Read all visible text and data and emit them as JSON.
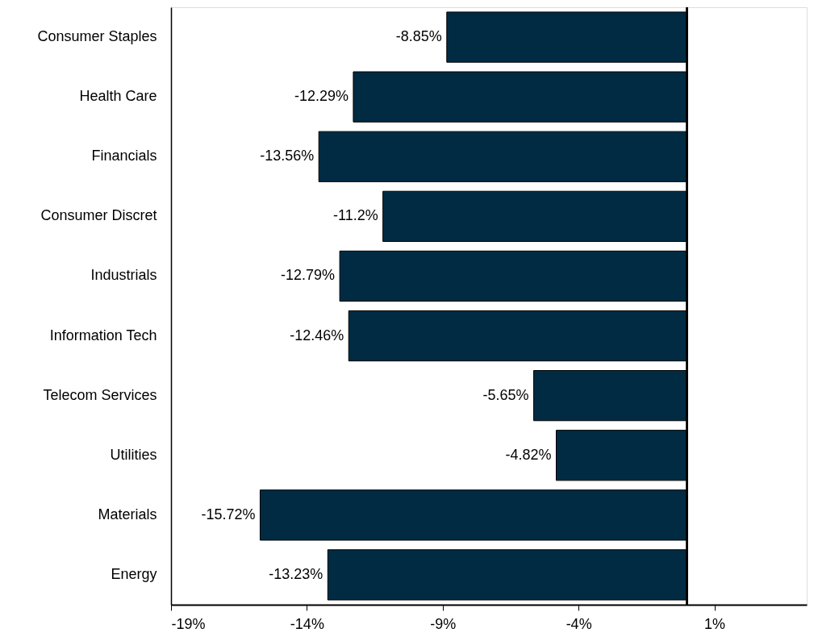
{
  "chart_data": {
    "type": "bar",
    "orientation": "horizontal",
    "categories": [
      "Consumer Staples",
      "Health Care",
      "Financials",
      "Consumer Discret",
      "Industrials",
      "Information Tech",
      "Telecom Services",
      "Utilities",
      "Materials",
      "Energy"
    ],
    "values": [
      -8.85,
      -12.29,
      -13.56,
      -11.2,
      -12.79,
      -12.46,
      -5.65,
      -4.82,
      -15.72,
      -13.23
    ],
    "value_labels": [
      "-8.85%",
      "-12.29%",
      "-13.56%",
      "-11.2%",
      "-12.79%",
      "-12.46%",
      "-5.65%",
      "-4.82%",
      "-15.72%",
      "-13.23%"
    ],
    "color": "#012b43",
    "grid": false,
    "xlim": [
      -19,
      4.4
    ],
    "xticks": [
      {
        "value": -19,
        "label": "-19%"
      },
      {
        "value": -14,
        "label": "-14%"
      },
      {
        "value": -9,
        "label": "-9%"
      },
      {
        "value": -4,
        "label": "-4%"
      },
      {
        "value": 1,
        "label": "1%"
      }
    ]
  }
}
